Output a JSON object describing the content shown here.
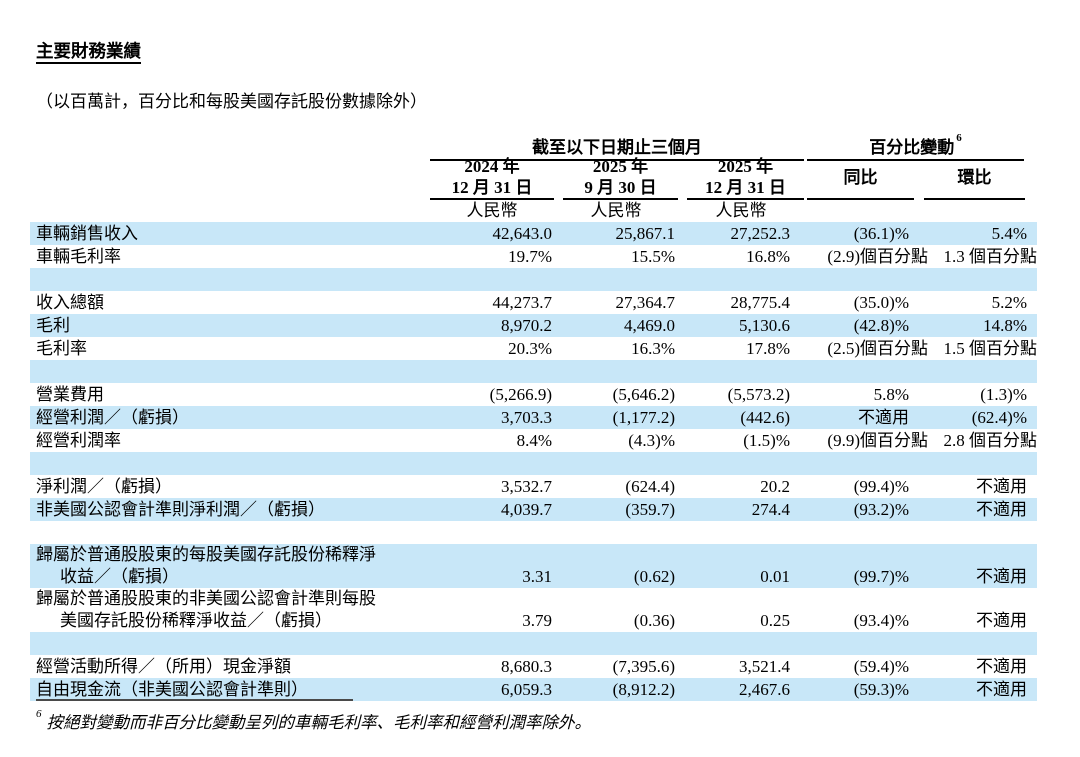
{
  "title": "主要財務業績",
  "units_note": "（以百萬計，百分比和每股美國存託股份數據除外）",
  "table": {
    "period_header": "截至以下日期止三個月",
    "change_header": "百分比變動",
    "change_header_sup": "6",
    "date_cols": [
      {
        "year": "2024 年",
        "date": "12 月 31 日",
        "currency": "人民幣"
      },
      {
        "year": "2025 年",
        "date": "9 月 30 日",
        "currency": "人民幣"
      },
      {
        "year": "2025 年",
        "date": "12 月 31 日",
        "currency": "人民幣"
      }
    ],
    "change_cols": [
      "同比",
      "環比"
    ],
    "rows": [
      {
        "label": "車輛銷售收入",
        "values": [
          "42,643.0",
          "25,867.1",
          "27,252.3",
          "(36.1)%",
          "5.4%"
        ],
        "bg": "blue"
      },
      {
        "label": "車輛毛利率",
        "values": [
          "19.7%",
          "15.5%",
          "16.8%",
          "(2.9)個百分點",
          "1.3 個百分點"
        ],
        "bg": "white"
      },
      {
        "spacer": true,
        "bg": "blue"
      },
      {
        "label": "收入總額",
        "values": [
          "44,273.7",
          "27,364.7",
          "28,775.4",
          "(35.0)%",
          "5.2%"
        ],
        "bg": "white"
      },
      {
        "label": "毛利",
        "values": [
          "8,970.2",
          "4,469.0",
          "5,130.6",
          "(42.8)%",
          "14.8%"
        ],
        "bg": "blue"
      },
      {
        "label": "毛利率",
        "values": [
          "20.3%",
          "16.3%",
          "17.8%",
          "(2.5)個百分點",
          "1.5 個百分點"
        ],
        "bg": "white"
      },
      {
        "spacer": true,
        "bg": "blue"
      },
      {
        "label": "營業費用",
        "values": [
          "(5,266.9)",
          "(5,646.2)",
          "(5,573.2)",
          "5.8%",
          "(1.3)%"
        ],
        "bg": "white"
      },
      {
        "label": "經營利潤／（虧損）",
        "values": [
          "3,703.3",
          "(1,177.2)",
          "(442.6)",
          "不適用",
          "(62.4)%"
        ],
        "bg": "blue"
      },
      {
        "label": "經營利潤率",
        "values": [
          "8.4%",
          "(4.3)%",
          "(1.5)%",
          "(9.9)個百分點",
          "2.8 個百分點"
        ],
        "bg": "white"
      },
      {
        "spacer": true,
        "bg": "blue"
      },
      {
        "label": "淨利潤／（虧損）",
        "values": [
          "3,532.7",
          "(624.4)",
          "20.2",
          "(99.4)%",
          "不適用"
        ],
        "bg": "white"
      },
      {
        "label": "非美國公認會計準則淨利潤／（虧損）",
        "values": [
          "4,039.7",
          "(359.7)",
          "274.4",
          "(93.2)%",
          "不適用"
        ],
        "bg": "blue"
      },
      {
        "spacer": true,
        "bg": "white"
      },
      {
        "label": "歸屬於普通股股東的每股美國存託股份稀釋淨",
        "label2": "收益／（虧損）",
        "values": [
          "3.31",
          "(0.62)",
          "0.01",
          "(99.7)%",
          "不適用"
        ],
        "bg": "blue"
      },
      {
        "label": "歸屬於普通股股東的非美國公認會計準則每股",
        "label2": "美國存託股份稀釋淨收益／（虧損）",
        "values": [
          "3.79",
          "(0.36)",
          "0.25",
          "(93.4)%",
          "不適用"
        ],
        "bg": "white"
      },
      {
        "spacer": true,
        "bg": "blue"
      },
      {
        "label": "經營活動所得／（所用）現金淨額",
        "values": [
          "8,680.3",
          "(7,395.6)",
          "3,521.4",
          "(59.4)%",
          "不適用"
        ],
        "bg": "white"
      },
      {
        "label": "自由現金流（非美國公認會計準則）",
        "values": [
          "6,059.3",
          "(8,912.2)",
          "2,467.6",
          "(59.3)%",
          "不適用"
        ],
        "bg": "blue"
      }
    ]
  },
  "footnote": {
    "sup": "6",
    "text": "按絕對變動而非百分比變動呈列的車輛毛利率、毛利率和經營利潤率除外。"
  }
}
